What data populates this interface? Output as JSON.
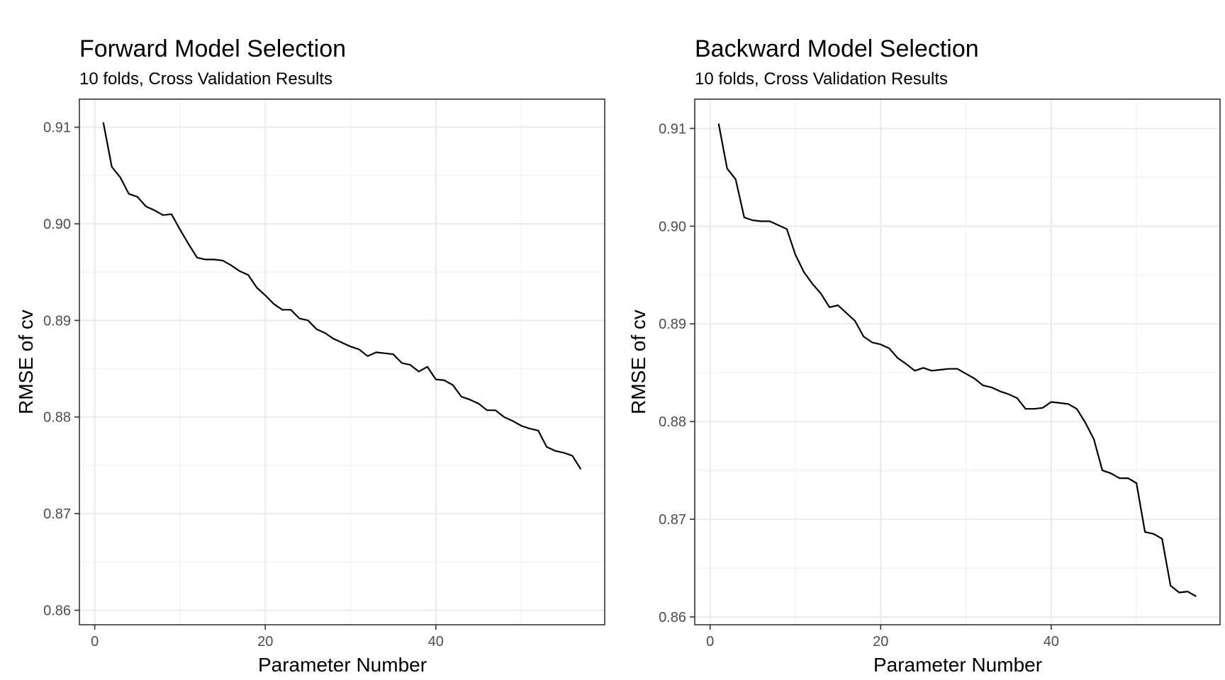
{
  "chart_data": [
    {
      "type": "line",
      "title": "Forward Model Selection",
      "subtitle": "10 folds, Cross Validation Results",
      "xlabel": "Parameter Number",
      "ylabel": "RMSE of cv",
      "xlim": [
        -1.8,
        59.8
      ],
      "ylim": [
        0.8585,
        0.9129
      ],
      "x_ticks": [
        0,
        20,
        40
      ],
      "y_ticks": [
        0.86,
        0.87,
        0.88,
        0.89,
        0.9,
        0.91
      ],
      "x_tick_labels": [
        "0",
        "20",
        "40"
      ],
      "y_tick_labels": [
        "0.86",
        "0.87",
        "0.88",
        "0.89",
        "0.90",
        "0.91"
      ],
      "grid": true,
      "series": [
        {
          "color": "#000000",
          "x": [
            1,
            2,
            3,
            4,
            5,
            6,
            7,
            8,
            9,
            10,
            11,
            12,
            13,
            14,
            15,
            16,
            17,
            18,
            19,
            20,
            21,
            22,
            23,
            24,
            25,
            26,
            27,
            28,
            29,
            30,
            31,
            32,
            33,
            34,
            35,
            36,
            37,
            38,
            39,
            40,
            41,
            42,
            43,
            44,
            45,
            46,
            47,
            48,
            49,
            50,
            51,
            52,
            53,
            54,
            55,
            56,
            57
          ],
          "y": [
            0.9105,
            0.9059,
            0.9048,
            0.9031,
            0.9028,
            0.9018,
            0.9014,
            0.9009,
            0.901,
            0.8994,
            0.8979,
            0.8965,
            0.8963,
            0.8963,
            0.8962,
            0.8957,
            0.8951,
            0.8947,
            0.8934,
            0.8926,
            0.8917,
            0.8911,
            0.8911,
            0.8902,
            0.89,
            0.8891,
            0.8887,
            0.8881,
            0.8877,
            0.8873,
            0.887,
            0.8863,
            0.8867,
            0.8866,
            0.8865,
            0.8856,
            0.8854,
            0.8847,
            0.8852,
            0.8839,
            0.8838,
            0.8833,
            0.8821,
            0.8818,
            0.8814,
            0.8807,
            0.8807,
            0.88,
            0.8796,
            0.8791,
            0.8788,
            0.8786,
            0.8769,
            0.8765,
            0.8763,
            0.876,
            0.8746
          ]
        }
      ]
    },
    {
      "type": "line",
      "title": "Backward Model Selection",
      "subtitle": "10 folds, Cross Validation Results",
      "xlabel": "Parameter Number",
      "ylabel": "RMSE of cv",
      "xlim": [
        -1.8,
        59.8
      ],
      "ylim": [
        0.8592,
        0.913
      ],
      "x_ticks": [
        0,
        20,
        40
      ],
      "y_ticks": [
        0.86,
        0.87,
        0.88,
        0.89,
        0.9,
        0.91
      ],
      "x_tick_labels": [
        "0",
        "20",
        "40"
      ],
      "y_tick_labels": [
        "0.86",
        "0.87",
        "0.88",
        "0.89",
        "0.90",
        "0.91"
      ],
      "grid": true,
      "series": [
        {
          "color": "#000000",
          "x": [
            1,
            2,
            3,
            4,
            5,
            6,
            7,
            8,
            9,
            10,
            11,
            12,
            13,
            14,
            15,
            16,
            17,
            18,
            19,
            20,
            21,
            22,
            23,
            24,
            25,
            26,
            27,
            28,
            29,
            30,
            31,
            32,
            33,
            34,
            35,
            36,
            37,
            38,
            39,
            40,
            41,
            42,
            43,
            44,
            45,
            46,
            47,
            48,
            49,
            50,
            51,
            52,
            53,
            54,
            55,
            56,
            57
          ],
          "y": [
            0.9105,
            0.9059,
            0.9048,
            0.9009,
            0.9006,
            0.9005,
            0.9005,
            0.9001,
            0.8997,
            0.8971,
            0.8953,
            0.8941,
            0.8931,
            0.8917,
            0.8919,
            0.8911,
            0.8903,
            0.8887,
            0.8881,
            0.8879,
            0.8875,
            0.8865,
            0.8859,
            0.8852,
            0.8855,
            0.8852,
            0.8853,
            0.8854,
            0.8854,
            0.8849,
            0.8844,
            0.8837,
            0.8835,
            0.8831,
            0.8828,
            0.8824,
            0.8813,
            0.8813,
            0.8814,
            0.882,
            0.8819,
            0.8818,
            0.8813,
            0.8799,
            0.8782,
            0.875,
            0.8747,
            0.8742,
            0.8742,
            0.8737,
            0.8687,
            0.8685,
            0.868,
            0.8632,
            0.8625,
            0.8626,
            0.8621
          ]
        }
      ]
    }
  ]
}
